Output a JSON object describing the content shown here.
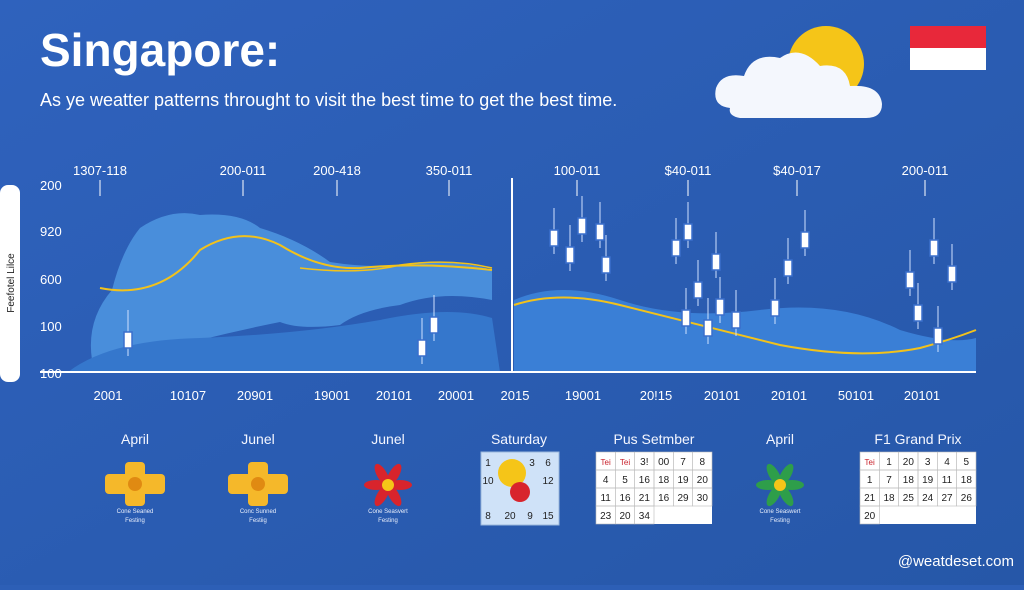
{
  "header": {
    "title": "Singapore:",
    "subtitle": "As ye weatter patterns throught to visit the best time to get the best time."
  },
  "panel": {
    "axis_title": "Feefotel Lilce",
    "y_labels": [
      "200",
      "920",
      "600",
      "100",
      "100"
    ],
    "top_labels": [
      "1307-118",
      "200-011",
      "200-418",
      "350-011",
      "100-011",
      "$40-011",
      "$40-017",
      "200-011"
    ],
    "bottom_labels": [
      "2001",
      "10107",
      "20901",
      "19001",
      "20101",
      "20001",
      "2015",
      "19001",
      "20!15",
      "20101",
      "20101",
      "50101",
      "20101"
    ]
  },
  "events": [
    {
      "label": "April",
      "caption": [
        "Cone Seaned",
        "Festing"
      ]
    },
    {
      "label": "Junel",
      "caption": [
        "Conc Sunned",
        "Festiig"
      ]
    },
    {
      "label": "Junel",
      "caption": [
        "Cone Seasvert",
        "Festing"
      ]
    },
    {
      "label": "April",
      "caption": [
        "Cone Seaswert",
        "Festing"
      ]
    }
  ],
  "calendars": [
    {
      "label": "Saturday",
      "cells": [
        "1",
        "3",
        "6",
        "10",
        "12",
        "8",
        "20",
        "9",
        "15"
      ]
    },
    {
      "label": "Pus Setmber",
      "rows": [
        [
          "Tei",
          "Tei",
          "3!",
          "00",
          "7",
          "8"
        ],
        [
          "4",
          "5",
          "16",
          "18",
          "19",
          "20"
        ],
        [
          "11",
          "16",
          "21",
          "16",
          "29",
          "30"
        ],
        [
          "23",
          "20",
          "34"
        ]
      ]
    },
    {
      "label": "F1 Grand Prix",
      "rows": [
        [
          "Tei",
          "1",
          "20",
          "3",
          "4",
          "5"
        ],
        [
          "1",
          "7",
          "18",
          "19",
          "11",
          "18"
        ],
        [
          "21",
          "18",
          "25",
          "24",
          "27",
          "26"
        ],
        [
          "20"
        ]
      ]
    }
  ],
  "footer": {
    "handle": "@weatdeset.com"
  }
}
